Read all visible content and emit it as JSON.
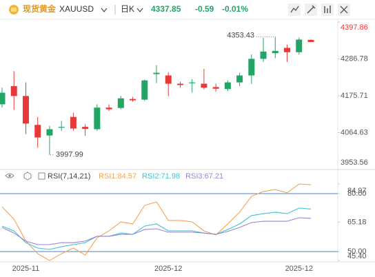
{
  "header": {
    "name": "现货黄金",
    "symbol": "XAUUSD",
    "period": "日K",
    "price": 4337.85,
    "change": -0.59,
    "change_pct": "-0.01%"
  },
  "chart_data": [
    {
      "type": "candlestick",
      "categories": [
        null,
        null,
        "2025-11",
        null,
        null,
        null,
        null,
        null,
        null,
        null,
        null,
        null,
        null,
        null,
        "2025-12",
        null,
        null,
        null,
        null,
        null,
        null,
        null,
        null,
        null,
        null,
        "2025-12",
        null
      ],
      "open": [
        4150,
        4205,
        4175,
        4088,
        4056,
        4080,
        4112,
        4082,
        4075,
        4140,
        4139,
        4166,
        4164,
        4241,
        4237,
        4212,
        4214,
        4212,
        4202,
        4196,
        4216,
        4237,
        4287,
        4304,
        4320,
        4307,
        4344
      ],
      "high": [
        4200,
        4250,
        4216,
        4112,
        4085,
        4100,
        4125,
        4090,
        4150,
        4150,
        4175,
        4172,
        4225,
        4268,
        4247,
        4218,
        4226,
        4257,
        4212,
        4222,
        4245,
        4300,
        4350,
        4353.43,
        4330,
        4351,
        4346
      ],
      "low": [
        4140,
        4133,
        4060,
        4019,
        3997.99,
        4070,
        4070,
        4055,
        4070,
        4130,
        4135,
        4158,
        4160,
        4214,
        4175,
        4200,
        4185,
        4195,
        4188,
        4190,
        4205,
        4212,
        4278,
        4289,
        4278,
        4300,
        4338
      ],
      "close": [
        4185,
        4175,
        4092,
        4050,
        4075,
        4082,
        4077,
        4076,
        4140,
        4135,
        4168,
        4162,
        4222,
        4245,
        4212,
        4208,
        4216,
        4200,
        4197,
        4216,
        4237,
        4287,
        4309,
        4311,
        4307,
        4345,
        4337.85
      ],
      "up_color": "#22a565",
      "down_color": "#e8393a",
      "high_label": 4353.43,
      "low_label": 3997.99,
      "ylim": [
        3953.56,
        4397.86
      ],
      "yticks": [
        4397.86,
        4286.78,
        4175.71,
        4064.63,
        3953.56
      ]
    },
    {
      "type": "line",
      "title": "RSI(7,14,21)",
      "series": [
        {
          "name": "RSI1:84.57",
          "color": "#f5a24f",
          "values": [
            73.2,
            66.8,
            55.4,
            48.9,
            45.4,
            48.9,
            51.8,
            48.2,
            57.1,
            60.7,
            65.4,
            64.3,
            73.9,
            75.7,
            66.1,
            66.1,
            65.4,
            60.7,
            58.6,
            64.3,
            70.4,
            78.6,
            81.1,
            82.1,
            80.4,
            84.97,
            84.57
          ]
        },
        {
          "name": "RSI2:71.98",
          "color": "#3cc3d3",
          "values": [
            63.2,
            60.7,
            54.6,
            51.8,
            51.1,
            52.5,
            53.6,
            54.6,
            57.9,
            57.9,
            59.6,
            58.9,
            63.2,
            64.3,
            60.7,
            60.7,
            60.7,
            59.6,
            58.9,
            61.4,
            64.3,
            68.6,
            69.6,
            70.4,
            69.6,
            72.5,
            71.98
          ]
        },
        {
          "name": "RSI3:67.21",
          "color": "#9c82d4",
          "values": [
            62.5,
            59.6,
            55.4,
            53.6,
            53.6,
            54.6,
            54.6,
            55.4,
            57.9,
            57.9,
            58.9,
            58.9,
            61.4,
            61.8,
            60.0,
            60.0,
            60.0,
            59.6,
            58.9,
            60.4,
            62.5,
            65.0,
            65.7,
            65.7,
            65.7,
            67.5,
            67.21
          ]
        }
      ],
      "reference_lines": [
        80,
        50
      ],
      "reference_color": "#3f86d6",
      "ylim": [
        45.4,
        84.97
      ],
      "yticks": [
        84.97,
        {
          "value": 80,
          "label": "80.00"
        },
        65.18,
        {
          "value": 50,
          "label": "50.00"
        },
        {
          "value": 45.4,
          "label": "45.40"
        }
      ]
    }
  ]
}
